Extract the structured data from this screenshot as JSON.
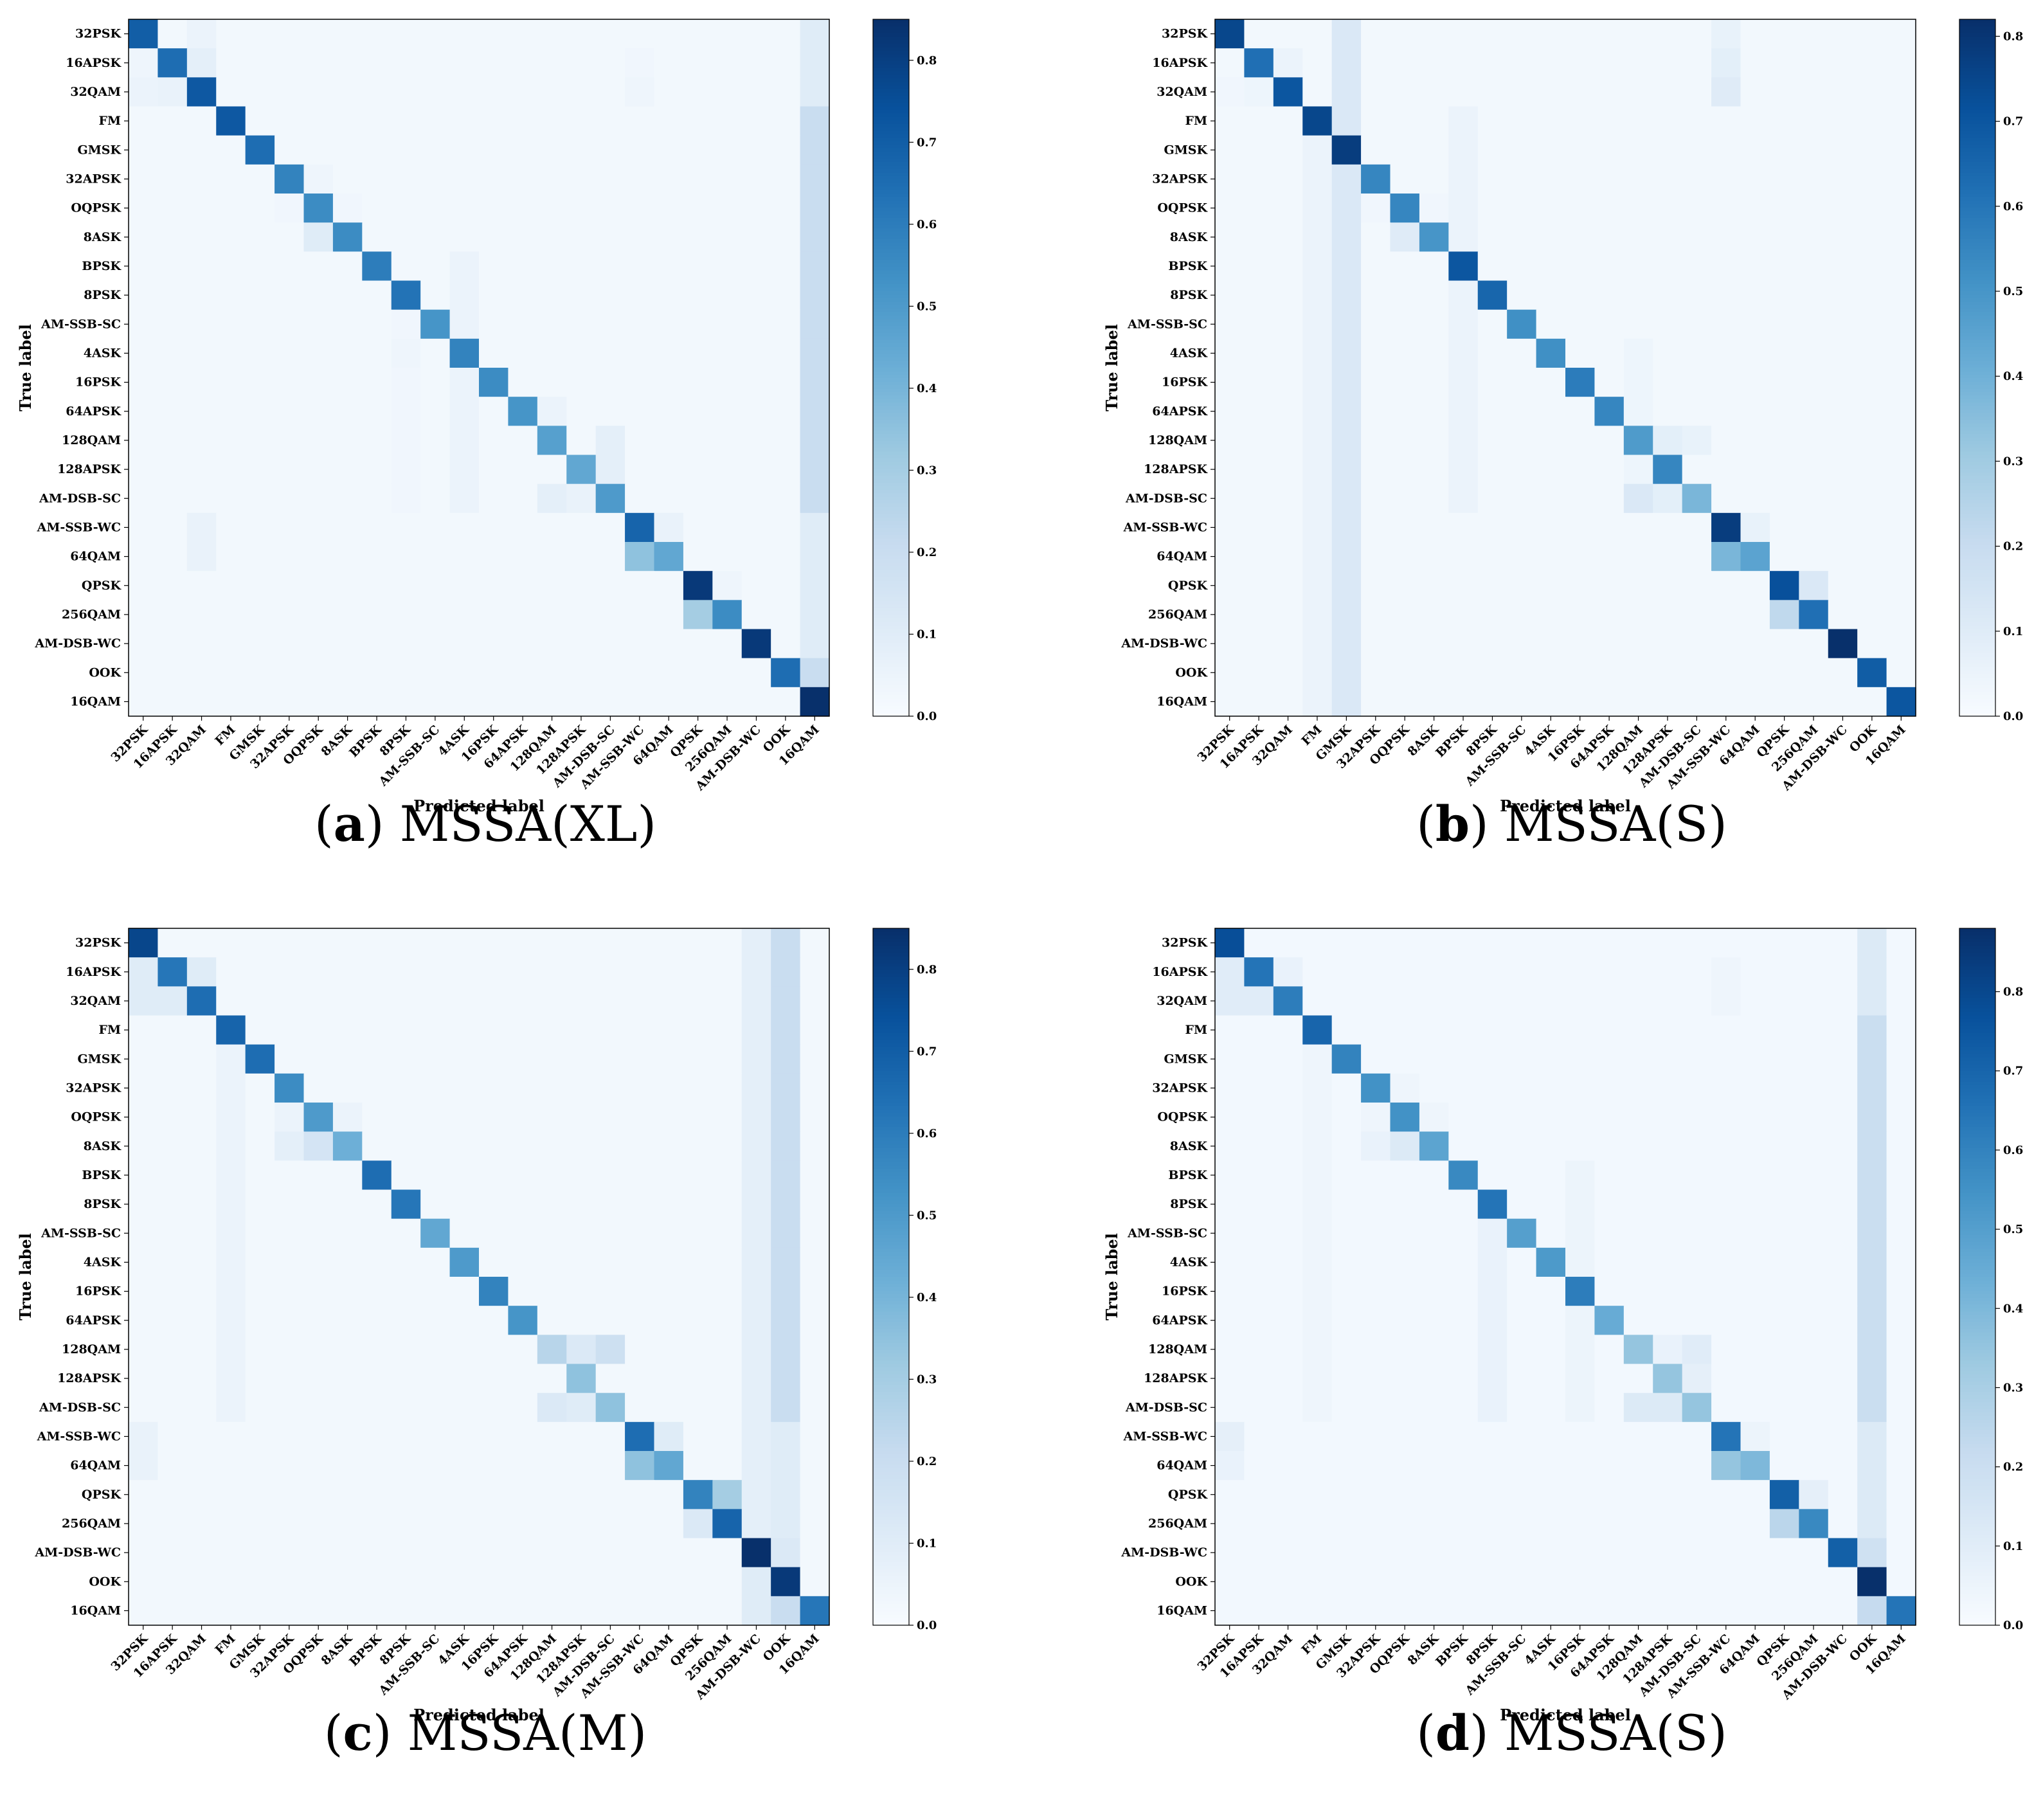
{
  "figure": {
    "classes": [
      "32PSK",
      "16APSK",
      "32QAM",
      "FM",
      "GMSK",
      "32APSK",
      "OQPSK",
      "8ASK",
      "BPSK",
      "8PSK",
      "AM-SSB-SC",
      "4ASK",
      "16PSK",
      "64APSK",
      "128QAM",
      "128APSK",
      "AM-DSB-SC",
      "AM-SSB-WC",
      "64QAM",
      "QPSK",
      "256QAM",
      "AM-DSB-WC",
      "OOK",
      "16QAM"
    ],
    "colormap": [
      "#f7fbff",
      "#deebf7",
      "#c6dbef",
      "#9ecae1",
      "#6baed6",
      "#4292c6",
      "#2171b5",
      "#08519c",
      "#08306b"
    ]
  },
  "chart_data": [
    {
      "type": "heatmap",
      "caption_letter": "(a)",
      "caption_text": "MSSA(XL)",
      "xlabel": "Predicted label",
      "ylabel": "True label",
      "vmin": 0.0,
      "vmax": 0.85,
      "colorbar_ticks": [
        "0.0",
        "0.1",
        "0.2",
        "0.3",
        "0.4",
        "0.5",
        "0.6",
        "0.7",
        "0.8"
      ],
      "diagonal": [
        0.7,
        0.65,
        0.72,
        0.72,
        0.65,
        0.58,
        0.55,
        0.55,
        0.6,
        0.63,
        0.52,
        0.58,
        0.55,
        0.52,
        0.48,
        0.45,
        0.5,
        0.68,
        0.45,
        0.82,
        0.55,
        0.82,
        0.65,
        0.85
      ],
      "cells": [
        {
          "r": 0,
          "c": 2,
          "v": 0.05
        },
        {
          "r": 1,
          "c": 2,
          "v": 0.08
        },
        {
          "r": 1,
          "c": 0,
          "v": 0.04
        },
        {
          "r": 1,
          "c": 1,
          "v": 0.65
        },
        {
          "r": 2,
          "c": 0,
          "v": 0.05
        },
        {
          "r": 2,
          "c": 1,
          "v": 0.06
        },
        {
          "r": 6,
          "c": 5,
          "v": 0.03
        },
        {
          "r": 5,
          "c": 6,
          "v": 0.04
        },
        {
          "r": 7,
          "c": 6,
          "v": 0.1
        },
        {
          "r": 6,
          "c": 7,
          "v": 0.03
        },
        {
          "r": 9,
          "c": 11,
          "v": 0.05
        },
        {
          "r": 11,
          "c": 9,
          "v": 0.04
        },
        {
          "r": 13,
          "c": 14,
          "v": 0.05
        },
        {
          "r": 14,
          "c": 16,
          "v": 0.08
        },
        {
          "r": 15,
          "c": 16,
          "v": 0.08
        },
        {
          "r": 16,
          "c": 14,
          "v": 0.08
        },
        {
          "r": 16,
          "c": 15,
          "v": 0.06
        },
        {
          "r": 17,
          "c": 18,
          "v": 0.06
        },
        {
          "r": 18,
          "c": 17,
          "v": 0.35
        },
        {
          "r": 18,
          "c": 2,
          "v": 0.06
        },
        {
          "r": 17,
          "c": 2,
          "v": 0.06
        },
        {
          "r": 19,
          "c": 20,
          "v": 0.04
        },
        {
          "r": 20,
          "c": 19,
          "v": 0.3
        },
        {
          "r": 1,
          "c": 17,
          "v": 0.03
        },
        {
          "r": 2,
          "c": 17,
          "v": 0.04
        }
      ],
      "bands": [
        {
          "axis": "col",
          "index": 23,
          "rows": [
            3,
            16
          ],
          "v": 0.2
        },
        {
          "axis": "col",
          "index": 23,
          "rows": [
            0,
            2
          ],
          "v": 0.1
        },
        {
          "axis": "col",
          "index": 23,
          "rows": [
            17,
            21
          ],
          "v": 0.1
        },
        {
          "axis": "col",
          "index": 23,
          "rows": [
            22,
            22
          ],
          "v": 0.2
        },
        {
          "axis": "col",
          "index": 11,
          "rows": [
            8,
            16
          ],
          "v": 0.05
        },
        {
          "axis": "col",
          "index": 9,
          "rows": [
            9,
            16
          ],
          "v": 0.03
        }
      ],
      "background": 0.02
    },
    {
      "type": "heatmap",
      "caption_letter": "(b)",
      "caption_text": "MSSA(S)",
      "xlabel": "Predicted label",
      "ylabel": "True label",
      "vmin": 0.0,
      "vmax": 0.82,
      "colorbar_ticks": [
        "0.0",
        "0.1",
        "0.2",
        "0.3",
        "0.4",
        "0.5",
        "0.6",
        "0.7",
        "0.8"
      ],
      "diagonal": [
        0.75,
        0.62,
        0.7,
        0.75,
        0.78,
        0.55,
        0.55,
        0.5,
        0.7,
        0.65,
        0.52,
        0.52,
        0.58,
        0.55,
        0.48,
        0.55,
        0.38,
        0.78,
        0.45,
        0.72,
        0.62,
        0.82,
        0.68,
        0.7
      ],
      "cells": [
        {
          "r": 1,
          "c": 2,
          "v": 0.05
        },
        {
          "r": 2,
          "c": 0,
          "v": 0.03
        },
        {
          "r": 2,
          "c": 1,
          "v": 0.04
        },
        {
          "r": 6,
          "c": 5,
          "v": 0.03
        },
        {
          "r": 7,
          "c": 6,
          "v": 0.1
        },
        {
          "r": 6,
          "c": 7,
          "v": 0.03
        },
        {
          "r": 14,
          "c": 15,
          "v": 0.08
        },
        {
          "r": 14,
          "c": 16,
          "v": 0.06
        },
        {
          "r": 16,
          "c": 14,
          "v": 0.12
        },
        {
          "r": 16,
          "c": 15,
          "v": 0.08
        },
        {
          "r": 17,
          "c": 18,
          "v": 0.06
        },
        {
          "r": 18,
          "c": 17,
          "v": 0.38
        },
        {
          "r": 19,
          "c": 20,
          "v": 0.12
        },
        {
          "r": 20,
          "c": 19,
          "v": 0.22
        },
        {
          "r": 0,
          "c": 17,
          "v": 0.06
        },
        {
          "r": 1,
          "c": 17,
          "v": 0.08
        },
        {
          "r": 2,
          "c": 17,
          "v": 0.1
        }
      ],
      "bands": [
        {
          "axis": "col",
          "index": 4,
          "rows": [
            0,
            23
          ],
          "v": 0.12
        },
        {
          "axis": "col",
          "index": 3,
          "rows": [
            4,
            23
          ],
          "v": 0.05
        },
        {
          "axis": "col",
          "index": 8,
          "rows": [
            3,
            16
          ],
          "v": 0.05
        },
        {
          "axis": "col",
          "index": 14,
          "rows": [
            11,
            16
          ],
          "v": 0.04
        }
      ],
      "background": 0.02
    },
    {
      "type": "heatmap",
      "caption_letter": "(c)",
      "caption_text": "MSSA(M)",
      "xlabel": "Predicted label",
      "ylabel": "True label",
      "vmin": 0.0,
      "vmax": 0.85,
      "colorbar_ticks": [
        "0.0",
        "0.1",
        "0.2",
        "0.3",
        "0.4",
        "0.5",
        "0.6",
        "0.7",
        "0.8"
      ],
      "diagonal": [
        0.78,
        0.62,
        0.65,
        0.68,
        0.65,
        0.55,
        0.5,
        0.42,
        0.65,
        0.62,
        0.45,
        0.5,
        0.58,
        0.52,
        0.25,
        0.35,
        0.35,
        0.65,
        0.45,
        0.58,
        0.68,
        0.85,
        0.82,
        0.62
      ],
      "cells": [
        {
          "r": 1,
          "c": 0,
          "v": 0.1
        },
        {
          "r": 1,
          "c": 2,
          "v": 0.1
        },
        {
          "r": 2,
          "c": 0,
          "v": 0.1
        },
        {
          "r": 2,
          "c": 1,
          "v": 0.1
        },
        {
          "r": 6,
          "c": 5,
          "v": 0.05
        },
        {
          "r": 7,
          "c": 5,
          "v": 0.08
        },
        {
          "r": 7,
          "c": 6,
          "v": 0.15
        },
        {
          "r": 6,
          "c": 7,
          "v": 0.05
        },
        {
          "r": 14,
          "c": 15,
          "v": 0.12
        },
        {
          "r": 14,
          "c": 16,
          "v": 0.18
        },
        {
          "r": 16,
          "c": 14,
          "v": 0.12
        },
        {
          "r": 16,
          "c": 15,
          "v": 0.1
        },
        {
          "r": 17,
          "c": 18,
          "v": 0.1
        },
        {
          "r": 18,
          "c": 17,
          "v": 0.35
        },
        {
          "r": 19,
          "c": 20,
          "v": 0.3
        },
        {
          "r": 20,
          "c": 19,
          "v": 0.12
        },
        {
          "r": 21,
          "c": 22,
          "v": 0.12
        },
        {
          "r": 22,
          "c": 21,
          "v": 0.1
        },
        {
          "r": 17,
          "c": 0,
          "v": 0.06
        },
        {
          "r": 18,
          "c": 0,
          "v": 0.06
        }
      ],
      "bands": [
        {
          "axis": "col",
          "index": 22,
          "rows": [
            0,
            16
          ],
          "v": 0.2
        },
        {
          "axis": "col",
          "index": 21,
          "rows": [
            0,
            20
          ],
          "v": 0.08
        },
        {
          "axis": "col",
          "index": 22,
          "rows": [
            17,
            20
          ],
          "v": 0.1
        },
        {
          "axis": "col",
          "index": 22,
          "rows": [
            23,
            23
          ],
          "v": 0.2
        },
        {
          "axis": "col",
          "index": 21,
          "rows": [
            23,
            23
          ],
          "v": 0.1
        },
        {
          "axis": "col",
          "index": 3,
          "rows": [
            3,
            16
          ],
          "v": 0.05
        }
      ],
      "background": 0.02
    },
    {
      "type": "heatmap",
      "caption_letter": "(d)",
      "caption_text": "MSSA(S)",
      "xlabel": "Predicted label",
      "ylabel": "True label",
      "vmin": 0.0,
      "vmax": 0.88,
      "colorbar_ticks": [
        "0.0",
        "0.1",
        "0.2",
        "0.3",
        "0.4",
        "0.5",
        "0.6",
        "0.7",
        "0.8"
      ],
      "diagonal": [
        0.78,
        0.65,
        0.62,
        0.7,
        0.6,
        0.55,
        0.55,
        0.48,
        0.58,
        0.65,
        0.5,
        0.52,
        0.62,
        0.45,
        0.35,
        0.35,
        0.35,
        0.65,
        0.4,
        0.72,
        0.58,
        0.72,
        0.88,
        0.65
      ],
      "cells": [
        {
          "r": 1,
          "c": 0,
          "v": 0.1
        },
        {
          "r": 1,
          "c": 2,
          "v": 0.06
        },
        {
          "r": 2,
          "c": 0,
          "v": 0.1
        },
        {
          "r": 2,
          "c": 1,
          "v": 0.1
        },
        {
          "r": 6,
          "c": 5,
          "v": 0.04
        },
        {
          "r": 7,
          "c": 5,
          "v": 0.06
        },
        {
          "r": 7,
          "c": 6,
          "v": 0.12
        },
        {
          "r": 5,
          "c": 6,
          "v": 0.04
        },
        {
          "r": 6,
          "c": 7,
          "v": 0.04
        },
        {
          "r": 14,
          "c": 15,
          "v": 0.06
        },
        {
          "r": 14,
          "c": 16,
          "v": 0.1
        },
        {
          "r": 15,
          "c": 16,
          "v": 0.08
        },
        {
          "r": 16,
          "c": 14,
          "v": 0.12
        },
        {
          "r": 16,
          "c": 15,
          "v": 0.12
        },
        {
          "r": 17,
          "c": 18,
          "v": 0.05
        },
        {
          "r": 18,
          "c": 17,
          "v": 0.35
        },
        {
          "r": 19,
          "c": 20,
          "v": 0.08
        },
        {
          "r": 20,
          "c": 19,
          "v": 0.25
        },
        {
          "r": 21,
          "c": 22,
          "v": 0.18
        },
        {
          "r": 17,
          "c": 0,
          "v": 0.08
        },
        {
          "r": 18,
          "c": 0,
          "v": 0.06
        },
        {
          "r": 1,
          "c": 17,
          "v": 0.04
        },
        {
          "r": 2,
          "c": 17,
          "v": 0.04
        }
      ],
      "bands": [
        {
          "axis": "col",
          "index": 22,
          "rows": [
            3,
            16
          ],
          "v": 0.2
        },
        {
          "axis": "col",
          "index": 22,
          "rows": [
            0,
            2
          ],
          "v": 0.12
        },
        {
          "axis": "col",
          "index": 22,
          "rows": [
            17,
            20
          ],
          "v": 0.12
        },
        {
          "axis": "col",
          "index": 22,
          "rows": [
            23,
            23
          ],
          "v": 0.22
        },
        {
          "axis": "col",
          "index": 9,
          "rows": [
            9,
            16
          ],
          "v": 0.06
        },
        {
          "axis": "col",
          "index": 3,
          "rows": [
            3,
            16
          ],
          "v": 0.04
        },
        {
          "axis": "col",
          "index": 12,
          "rows": [
            8,
            16
          ],
          "v": 0.05
        }
      ],
      "background": 0.02
    }
  ]
}
